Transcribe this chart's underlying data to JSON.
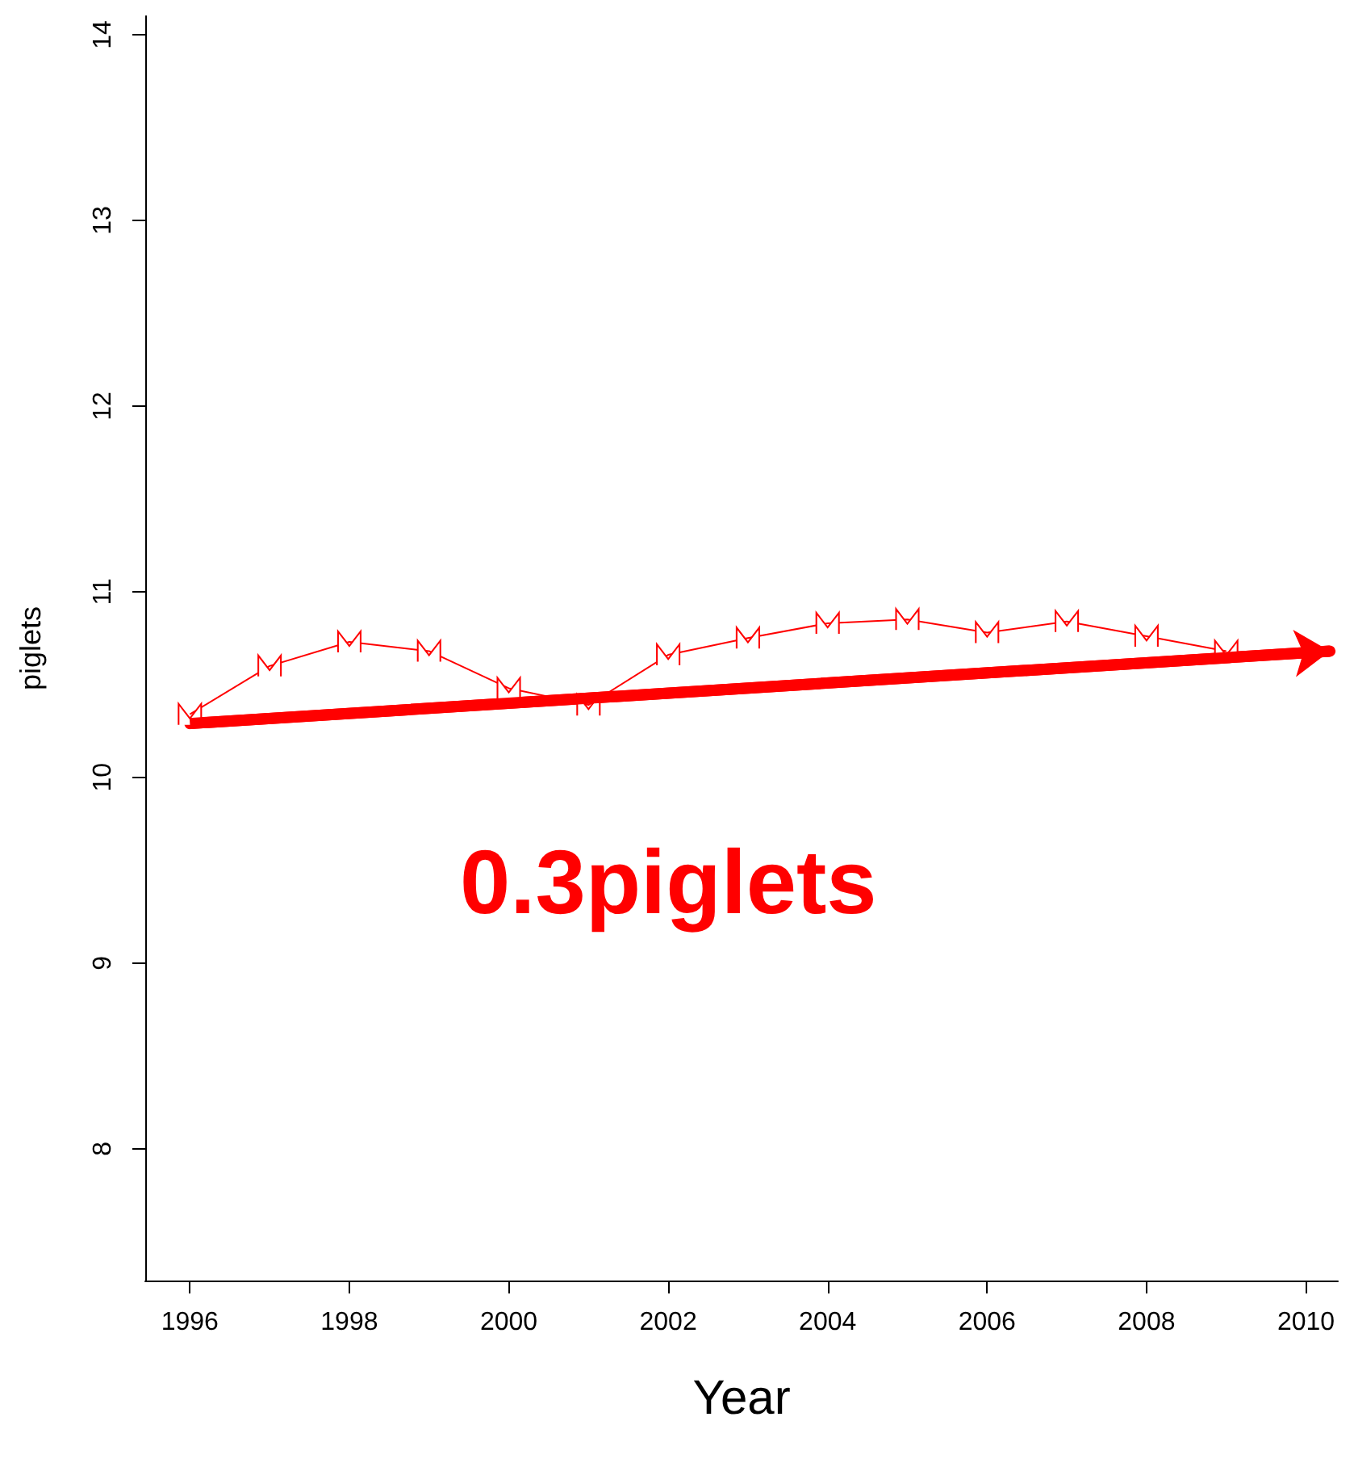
{
  "chart_data": {
    "type": "line",
    "xlabel": "Year",
    "ylabel": "piglets",
    "series": [
      {
        "color": "#ff0000",
        "marker": "cross",
        "x": [
          1996,
          1997,
          1998,
          1999,
          2000,
          2001,
          2002,
          2003,
          2004,
          2005,
          2006,
          2007,
          2008,
          2009
        ],
        "values": [
          10.34,
          10.6,
          10.73,
          10.68,
          10.48,
          10.39,
          10.66,
          10.75,
          10.83,
          10.85,
          10.78,
          10.84,
          10.76,
          10.68
        ]
      },
      {
        "type": "line",
        "color": "#ff0000",
        "x": [
          1996,
          2010.3
        ],
        "values": [
          10.29,
          10.68
        ]
      }
    ],
    "annotations": [
      "0.3piglets"
    ],
    "xlim": [
      1995.44,
      2010.4
    ],
    "xticks": [
      1996,
      1998,
      2000,
      2002,
      2004,
      2006,
      2008,
      2010
    ],
    "ylim": [
      7.29,
      14.1
    ],
    "yticks": [
      8,
      9,
      10,
      11,
      12,
      13,
      14
    ],
    "grid": false
  }
}
